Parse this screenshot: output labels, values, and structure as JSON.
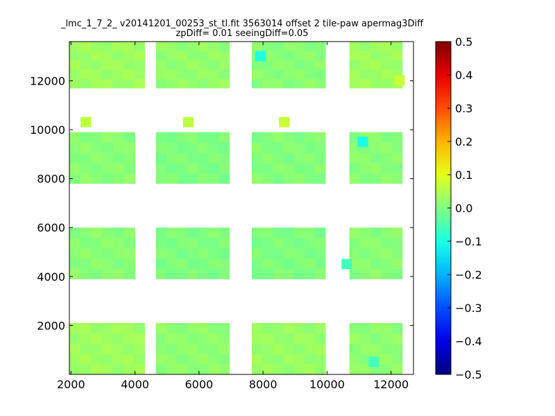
{
  "chart_data": {
    "type": "heatmap",
    "title_line1": "_lmc_1_7_2_ v20141201_00253_st_tl.fit 3563014 offset 2 tile-paw apermag3Diff",
    "title_line2": "zpDiff= 0.01 seeingDiff=0.05",
    "xlabel": "",
    "ylabel": "",
    "xlim": [
      1950,
      12700
    ],
    "ylim": [
      0,
      13600
    ],
    "xticks": [
      2000,
      4000,
      6000,
      8000,
      10000,
      12000
    ],
    "yticks": [
      2000,
      4000,
      6000,
      8000,
      10000,
      12000
    ],
    "colorbar": {
      "colormap": "jet",
      "vmin": -0.5,
      "vmax": 0.5,
      "ticks": [
        "0.5",
        "0.4",
        "0.3",
        "0.2",
        "0.1",
        "0.0",
        "−0.1",
        "−0.2",
        "−0.3",
        "−0.4",
        "−0.5"
      ]
    },
    "cell_size": [
      330,
      420
    ],
    "blocks": [
      {
        "x": [
          1950,
          4300
        ],
        "y": [
          0,
          2100
        ],
        "value": 0.03
      },
      {
        "x": [
          4650,
          6950
        ],
        "y": [
          0,
          2100
        ],
        "value": 0.015
      },
      {
        "x": [
          7650,
          9950
        ],
        "y": [
          0,
          2100
        ],
        "value": 0.025
      },
      {
        "x": [
          10700,
          12350
        ],
        "y": [
          0,
          2100
        ],
        "value": 0.015
      },
      {
        "x": [
          1950,
          4000
        ],
        "y": [
          3900,
          6000
        ],
        "value": 0.01
      },
      {
        "x": [
          4650,
          6950
        ],
        "y": [
          3900,
          6000
        ],
        "value": 0.0
      },
      {
        "x": [
          7650,
          9950
        ],
        "y": [
          3900,
          6000
        ],
        "value": 0.0
      },
      {
        "x": [
          10700,
          12350
        ],
        "y": [
          3900,
          6000
        ],
        "value": 0.01
      },
      {
        "x": [
          1950,
          4000
        ],
        "y": [
          7800,
          9900
        ],
        "value": 0.01
      },
      {
        "x": [
          4650,
          6950
        ],
        "y": [
          7800,
          9900
        ],
        "value": 0.0
      },
      {
        "x": [
          7650,
          9950
        ],
        "y": [
          7800,
          9900
        ],
        "value": 0.005
      },
      {
        "x": [
          10700,
          12350
        ],
        "y": [
          7800,
          9900
        ],
        "value": 0.01
      },
      {
        "x": [
          1950,
          4300
        ],
        "y": [
          11700,
          13600
        ],
        "value": 0.03
      },
      {
        "x": [
          4650,
          6950
        ],
        "y": [
          11700,
          13600
        ],
        "value": 0.02
      },
      {
        "x": [
          7650,
          9950
        ],
        "y": [
          11700,
          13600
        ],
        "value": 0.01
      },
      {
        "x": [
          10700,
          12350
        ],
        "y": [
          11700,
          13600
        ],
        "value": 0.03
      }
    ],
    "anomalies": [
      {
        "x": 7750,
        "y": 12800,
        "value": -0.1
      },
      {
        "x": 10950,
        "y": 9300,
        "value": -0.1
      },
      {
        "x": 10450,
        "y": 4300,
        "value": -0.06
      },
      {
        "x": 11300,
        "y": 300,
        "value": -0.06
      },
      {
        "x": 2300,
        "y": 10100,
        "value": 0.06
      },
      {
        "x": 8500,
        "y": 10100,
        "value": 0.07
      },
      {
        "x": 12100,
        "y": 11800,
        "value": 0.07
      },
      {
        "x": 5500,
        "y": 10100,
        "value": 0.06
      }
    ]
  }
}
